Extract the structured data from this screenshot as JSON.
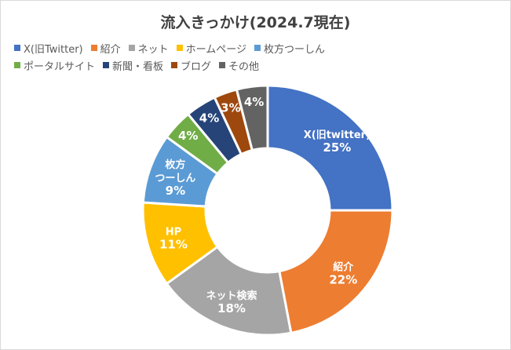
{
  "chart_data": {
    "type": "pie",
    "title": "流入きっかけ(2024.7現在)",
    "donut": true,
    "legend_position": "top",
    "series": [
      {
        "slices": [
          {
            "legend": "X(旧Twitter)",
            "label": "X(旧twitter)",
            "value": 25,
            "pct": "25%",
            "color": "#4472C4"
          },
          {
            "legend": "紹介",
            "label": "紹介",
            "value": 22,
            "pct": "22%",
            "color": "#ED7D31"
          },
          {
            "legend": "ネット",
            "label": "ネット検索",
            "value": 18,
            "pct": "18%",
            "color": "#A5A5A5"
          },
          {
            "legend": "ホームページ",
            "label": "HP",
            "value": 11,
            "pct": "11%",
            "color": "#FFC000"
          },
          {
            "legend": "枚方つーしん",
            "label": "枚方\nつーしん",
            "value": 9,
            "pct": "9%",
            "color": "#5B9BD5"
          },
          {
            "legend": "ポータルサイト",
            "label": "",
            "value": 4,
            "pct": "4%",
            "color": "#70AD47"
          },
          {
            "legend": "新聞・看板",
            "label": "",
            "value": 4,
            "pct": "4%",
            "color": "#264478"
          },
          {
            "legend": "ブログ",
            "label": "",
            "value": 3,
            "pct": "3%",
            "color": "#9E480E"
          },
          {
            "legend": "その他",
            "label": "",
            "value": 4,
            "pct": "4%",
            "color": "#636363"
          }
        ]
      }
    ]
  }
}
